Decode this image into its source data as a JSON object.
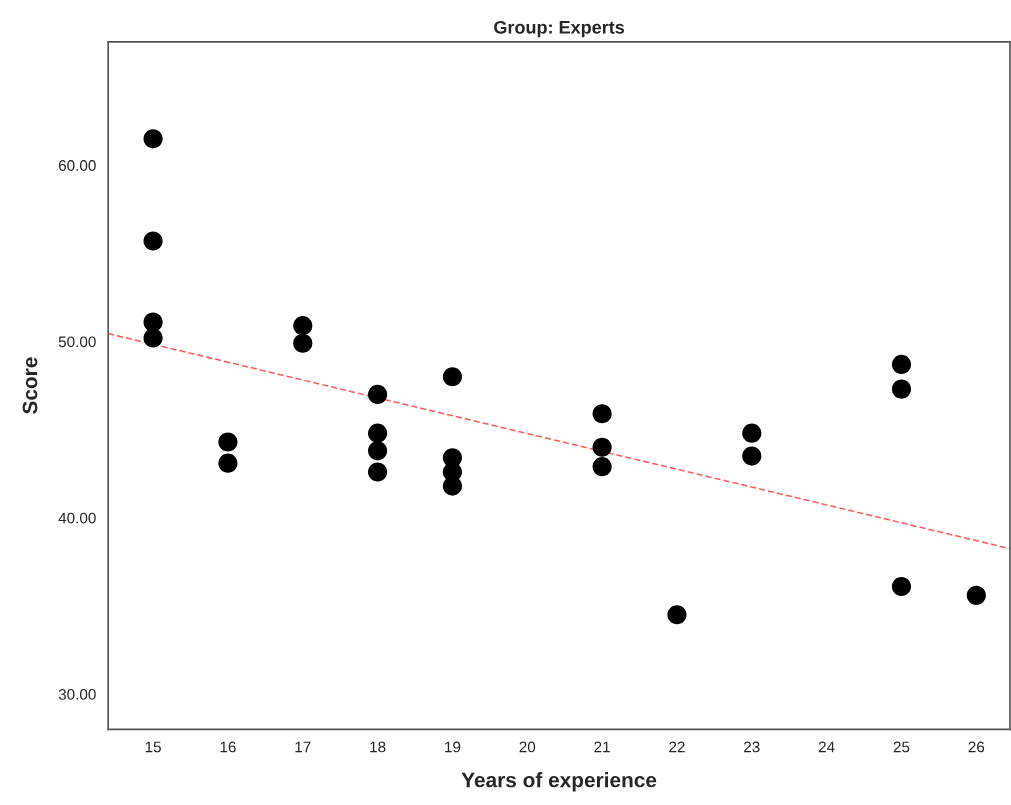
{
  "chart_data": {
    "type": "scatter",
    "title": "Group: Experts",
    "xlabel": "Years of experience",
    "ylabel": "Score",
    "series": [
      {
        "color": "#000000",
        "marker": "circle",
        "x": [
          15,
          15,
          15,
          15,
          16,
          16,
          17,
          17,
          18,
          18,
          18,
          18,
          19,
          19,
          19,
          19,
          21,
          21,
          21,
          22,
          23,
          23,
          25,
          25,
          25,
          26
        ],
        "values": [
          61.5,
          55.7,
          51.1,
          50.2,
          44.3,
          43.1,
          50.9,
          49.9,
          47.0,
          44.8,
          43.8,
          42.6,
          48.0,
          43.4,
          42.6,
          41.8,
          45.9,
          44.0,
          42.9,
          34.5,
          44.8,
          43.5,
          48.7,
          47.3,
          36.1,
          35.6
        ]
      },
      {
        "type": "line",
        "color": "#ff5a5a",
        "line_style": "dashed",
        "x": [
          14.4,
          26.45
        ],
        "values": [
          50.45,
          38.25
        ]
      }
    ],
    "xlim": [
      14.4,
      26.45
    ],
    "ylim": [
      28,
      67
    ],
    "xticks": [
      15,
      16,
      17,
      18,
      19,
      20,
      21,
      22,
      23,
      24,
      25,
      26
    ],
    "yticks": [
      {
        "value": 30,
        "label": "30.00"
      },
      {
        "value": 40,
        "label": "40.00"
      },
      {
        "value": 50,
        "label": "50.00"
      },
      {
        "value": 60,
        "label": "60.00"
      }
    ],
    "grid": false,
    "legend": false
  }
}
